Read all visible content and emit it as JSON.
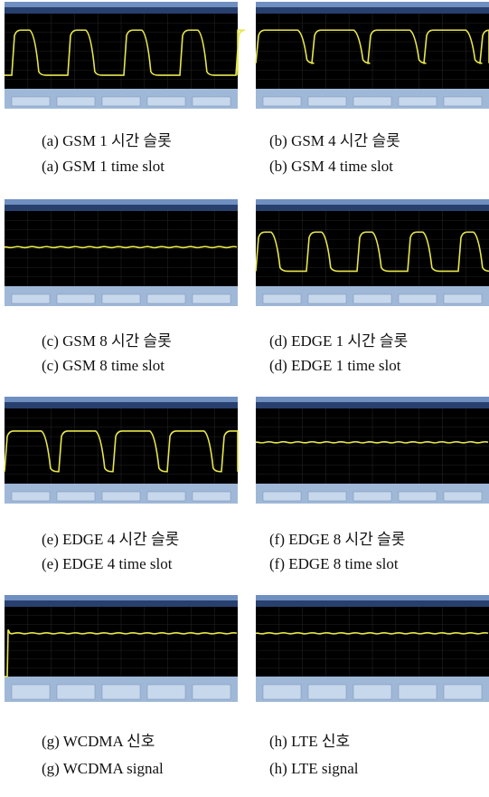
{
  "panels": [
    {
      "caption_ko": "(a) GSM 1 시간 슬롯",
      "caption_en": "(a) GSM 1 time slot"
    },
    {
      "caption_ko": "(b) GSM 4 시간 슬롯",
      "caption_en": "(b) GSM 4 time slot"
    },
    {
      "caption_ko": "(c) GSM 8 시간 슬롯",
      "caption_en": "(c) GSM 8 time slot"
    },
    {
      "caption_ko": "(d) EDGE 1 시간 슬롯",
      "caption_en": "(d) EDGE 1 time slot"
    },
    {
      "caption_ko": "(e) EDGE 4 시간 슬롯",
      "caption_en": "(e) EDGE 4 time slot"
    },
    {
      "caption_ko": "(f) EDGE 8 시간 슬롯",
      "caption_en": "(f) EDGE 8 time slot"
    },
    {
      "caption_ko": "(g) WCDMA 신호",
      "caption_en": "(g) WCDMA signal"
    },
    {
      "caption_ko": "(h) LTE 신호",
      "caption_en": "(h) LTE signal"
    }
  ]
}
